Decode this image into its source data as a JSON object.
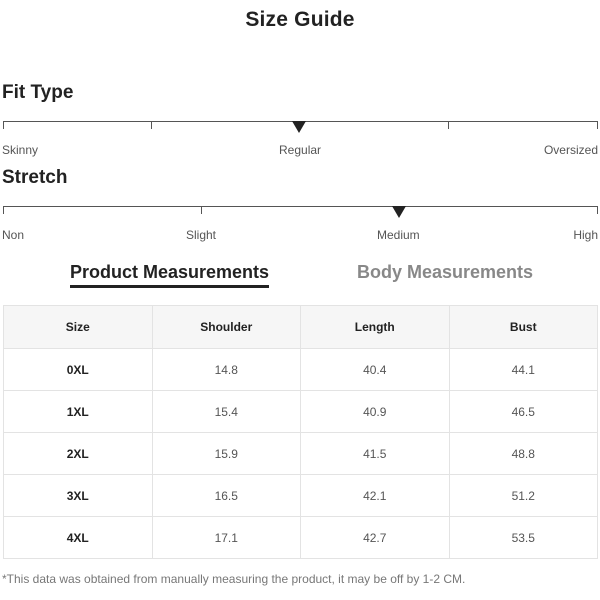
{
  "page": {
    "title": "Size Guide"
  },
  "fit_type": {
    "title": "Fit Type",
    "labels": [
      "Skinny",
      "Regular",
      "Oversized"
    ],
    "selected": "Regular"
  },
  "stretch": {
    "title": "Stretch",
    "labels": [
      "Non",
      "Slight",
      "Medium",
      "High"
    ],
    "selected": "Medium"
  },
  "tabs": [
    {
      "label": "Product Measurements",
      "active": true
    },
    {
      "label": "Body Measurements",
      "active": false
    }
  ],
  "table": {
    "headers": [
      "Size",
      "Shoulder",
      "Length",
      "Bust"
    ],
    "rows": [
      [
        "0XL",
        "14.8",
        "40.4",
        "44.1"
      ],
      [
        "1XL",
        "15.4",
        "40.9",
        "46.5"
      ],
      [
        "2XL",
        "15.9",
        "41.5",
        "48.8"
      ],
      [
        "3XL",
        "16.5",
        "42.1",
        "51.2"
      ],
      [
        "4XL",
        "17.1",
        "42.7",
        "53.5"
      ]
    ]
  },
  "footnote": "*This data was obtained from manually measuring the product, it may be off by 1-2 CM.",
  "colors": {
    "text_dark": "#222222",
    "text_muted": "#555555",
    "tab_inactive": "#888888",
    "header_bg": "#f6f6f6",
    "border": "#e3e3e3"
  }
}
